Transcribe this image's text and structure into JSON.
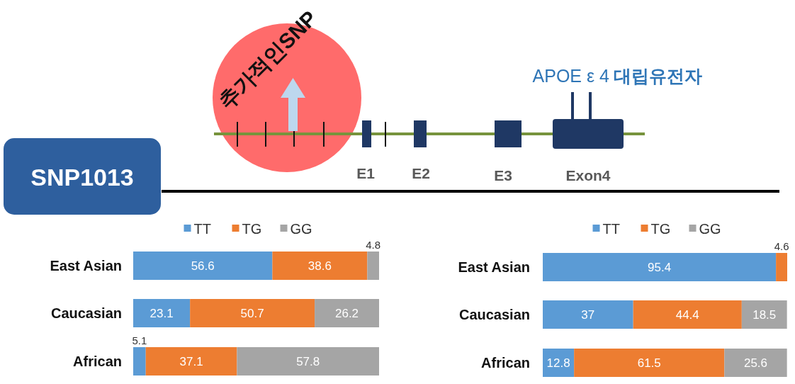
{
  "chart_data": [
    {
      "type": "other",
      "title": "SNP1013",
      "annotations": [
        "추가적인SNP",
        "APOE ε 4",
        "대립유전자",
        "E1",
        "E2",
        "E3",
        "Exon4"
      ]
    },
    {
      "type": "bar",
      "orientation": "horizontal",
      "stacked": true,
      "data_labels": true,
      "legend": "top",
      "xlim": [
        0,
        100
      ],
      "categories": [
        "East Asian",
        "Caucasian",
        "African"
      ],
      "series": [
        {
          "name": "TT",
          "color": "#5b9bd5",
          "values": [
            56.6,
            23.1,
            5.1
          ]
        },
        {
          "name": "TG",
          "color": "#ed7d31",
          "values": [
            38.6,
            50.7,
            37.1
          ]
        },
        {
          "name": "GG",
          "color": "#a5a5a5",
          "values": [
            4.8,
            26.2,
            57.8
          ]
        }
      ]
    },
    {
      "type": "bar",
      "orientation": "horizontal",
      "stacked": true,
      "data_labels": true,
      "legend": "top",
      "xlim": [
        0,
        100
      ],
      "categories": [
        "East Asian",
        "Caucasian",
        "African"
      ],
      "series": [
        {
          "name": "TT",
          "color": "#5b9bd5",
          "values": [
            95.4,
            37,
            12.8
          ]
        },
        {
          "name": "TG",
          "color": "#ed7d31",
          "values": [
            4.6,
            44.4,
            61.5
          ]
        },
        {
          "name": "GG",
          "color": "#a5a5a5",
          "values": [
            null,
            18.5,
            25.6
          ]
        }
      ]
    }
  ]
}
